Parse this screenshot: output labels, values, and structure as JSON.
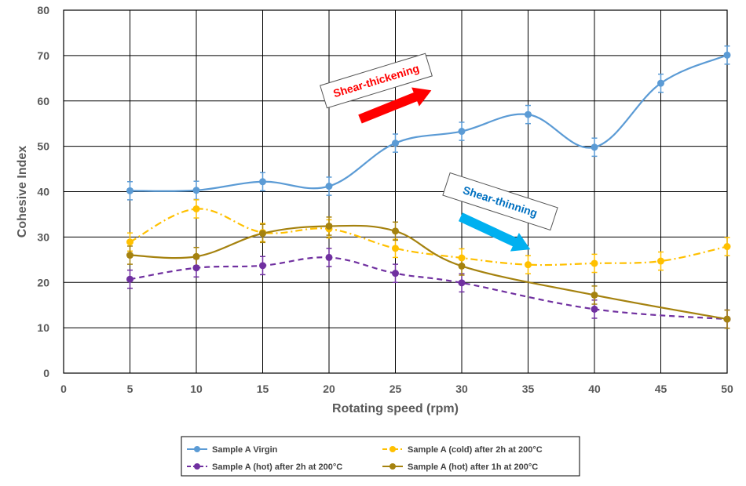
{
  "chart_data": {
    "type": "line",
    "title": "",
    "xlabel": "Rotating speed (rpm)",
    "ylabel": "Cohesive Index",
    "xlim": [
      0,
      50
    ],
    "ylim": [
      0,
      80
    ],
    "x_ticks": [
      0,
      5,
      10,
      15,
      20,
      25,
      30,
      35,
      40,
      45,
      50
    ],
    "y_ticks": [
      0,
      10,
      20,
      30,
      40,
      50,
      60,
      70,
      80
    ],
    "grid": true,
    "legend_position": "bottom",
    "series": [
      {
        "name": "Sample A Virgin",
        "color": "#5B9BD5",
        "dash": "solid",
        "x": [
          5,
          10,
          15,
          20,
          25,
          30,
          35,
          40,
          45,
          50
        ],
        "y": [
          40.2,
          40.3,
          42.2,
          41.2,
          50.7,
          53.3,
          57.0,
          49.8,
          63.9,
          70.1
        ],
        "err": [
          2.0,
          2.0,
          2.0,
          2.0,
          2.0,
          2.0,
          2.0,
          2.0,
          2.0,
          2.0
        ]
      },
      {
        "name": "Sample A (cold) after 2h at 200°C",
        "color": "#FFC000",
        "dash": "dashdot",
        "x": [
          5,
          10,
          15,
          20,
          25,
          30,
          35,
          40,
          45,
          50
        ],
        "y": [
          28.9,
          36.2,
          31.0,
          31.8,
          27.5,
          25.4,
          23.9,
          24.2,
          24.7,
          27.9
        ],
        "err": [
          2.0,
          2.0,
          2.0,
          2.0,
          2.0,
          2.0,
          2.0,
          2.0,
          2.0,
          2.0
        ]
      },
      {
        "name": "Sample A (hot) after 2h at 200°C",
        "color": "#7030A0",
        "dash": "dashed",
        "x": [
          5,
          10,
          15,
          20,
          25,
          30,
          40,
          50
        ],
        "y": [
          20.7,
          23.2,
          23.7,
          25.5,
          22.0,
          19.9,
          14.1,
          11.9
        ],
        "err": [
          2.0,
          2.0,
          2.0,
          2.0,
          2.0,
          2.0,
          2.0,
          2.0
        ]
      },
      {
        "name": "Sample A (hot) after 1h at 200°C",
        "color": "#A5820F",
        "dash": "solid",
        "x": [
          5,
          10,
          15,
          20,
          25,
          30,
          40,
          50
        ],
        "y": [
          26.0,
          25.7,
          30.8,
          32.4,
          31.3,
          23.6,
          17.2,
          11.9
        ],
        "err": [
          2.0,
          2.0,
          2.0,
          2.0,
          2.0,
          2.0,
          2.0,
          2.0
        ]
      }
    ],
    "annotations": [
      {
        "text": "Shear-thickening",
        "color": "#FF0000",
        "arrow_color": "#FF0000"
      },
      {
        "text": "Shear-thinning",
        "color": "#0070C0",
        "arrow_color": "#00B0F0"
      }
    ]
  }
}
